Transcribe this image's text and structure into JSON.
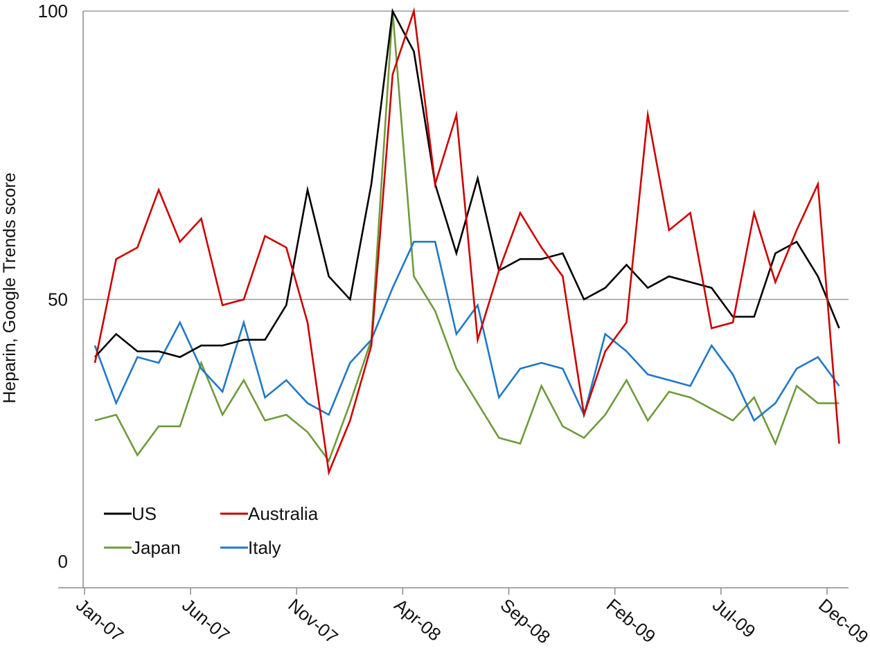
{
  "chart_data": {
    "type": "line",
    "title": "",
    "xlabel": "",
    "ylabel": "Heparin, Google Trends score",
    "ylim": [
      0,
      100
    ],
    "yticks": [
      0,
      50,
      100
    ],
    "x": [
      "2007-01",
      "2007-02",
      "2007-03",
      "2007-04",
      "2007-05",
      "2007-06",
      "2007-07",
      "2007-08",
      "2007-09",
      "2007-10",
      "2007-11",
      "2007-12",
      "2008-01",
      "2008-02",
      "2008-03",
      "2008-04",
      "2008-05",
      "2008-06",
      "2008-07",
      "2008-08",
      "2008-09",
      "2008-10",
      "2008-11",
      "2008-12",
      "2009-01",
      "2009-02",
      "2009-03",
      "2009-04",
      "2009-05",
      "2009-06",
      "2009-07",
      "2009-08",
      "2009-09",
      "2009-10",
      "2009-11",
      "2009-12"
    ],
    "xtick_labels": [
      "Jan-07",
      "Jun-07",
      "Nov-07",
      "Apr-08",
      "Sep-08",
      "Feb-09",
      "Jul-09",
      "Dec-09"
    ],
    "grid": "horizontal",
    "legend": "bottom-left",
    "series": [
      {
        "name": "US",
        "color": "#000000",
        "values": [
          40,
          44,
          41,
          41,
          40,
          42,
          42,
          43,
          43,
          49,
          69,
          54,
          50,
          70,
          100,
          93,
          70,
          58,
          71,
          55,
          57,
          57,
          58,
          50,
          52,
          56,
          52,
          54,
          53,
          52,
          47,
          47,
          58,
          60,
          54,
          45
        ]
      },
      {
        "name": "Australia",
        "color": "#cc0000",
        "values": [
          39,
          57,
          59,
          69,
          60,
          64,
          49,
          50,
          61,
          59,
          46,
          20,
          29,
          42,
          89,
          100,
          70,
          82,
          43,
          55,
          65,
          59,
          54,
          30,
          41,
          46,
          82,
          62,
          65,
          45,
          46,
          65,
          53,
          62,
          70,
          25
        ]
      },
      {
        "name": "Japan",
        "color": "#6f9a3a",
        "values": [
          29,
          30,
          23,
          28,
          28,
          39,
          30,
          36,
          29,
          30,
          27,
          22,
          32,
          43,
          100,
          54,
          48,
          38,
          32,
          26,
          25,
          35,
          28,
          26,
          30,
          36,
          29,
          34,
          33,
          31,
          29,
          33,
          25,
          35,
          32,
          32
        ]
      },
      {
        "name": "Italy",
        "color": "#1f78c8",
        "values": [
          42,
          32,
          40,
          39,
          46,
          38,
          34,
          46,
          33,
          36,
          32,
          30,
          39,
          43,
          52,
          60,
          60,
          44,
          49,
          33,
          38,
          39,
          38,
          30,
          44,
          41,
          37,
          36,
          35,
          42,
          37,
          29,
          32,
          38,
          40,
          35
        ]
      }
    ]
  }
}
